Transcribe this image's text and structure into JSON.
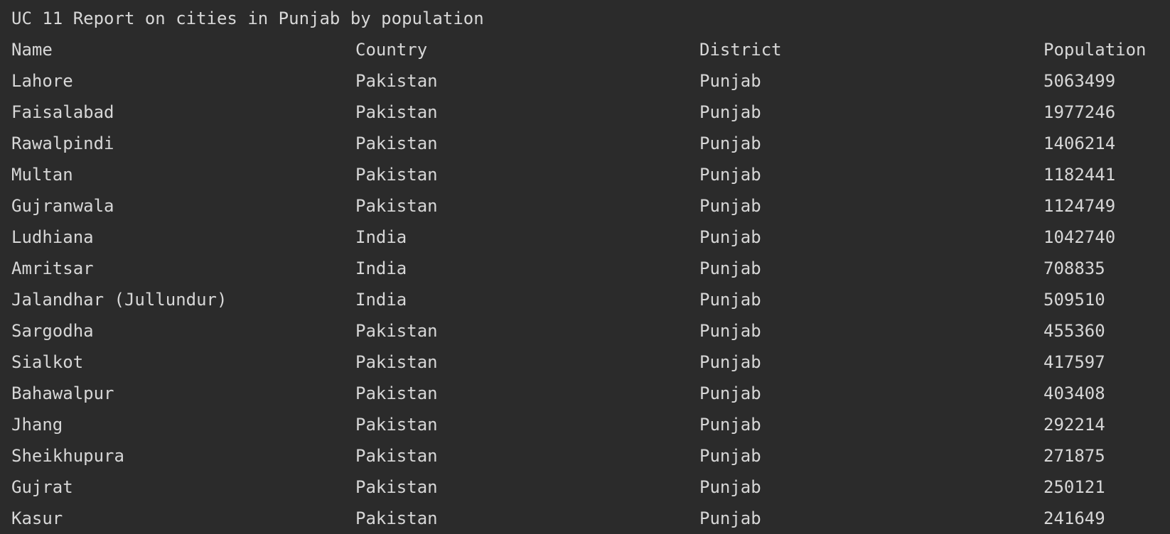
{
  "report": {
    "title": "UC 11 Report on cities in Punjab by population",
    "headers": [
      "Name",
      "Country",
      "District",
      "Population"
    ],
    "rows": [
      [
        "Lahore",
        "Pakistan",
        "Punjab",
        "5063499"
      ],
      [
        "Faisalabad",
        "Pakistan",
        "Punjab",
        "1977246"
      ],
      [
        "Rawalpindi",
        "Pakistan",
        "Punjab",
        "1406214"
      ],
      [
        "Multan",
        "Pakistan",
        "Punjab",
        "1182441"
      ],
      [
        "Gujranwala",
        "Pakistan",
        "Punjab",
        "1124749"
      ],
      [
        "Ludhiana",
        "India",
        "Punjab",
        "1042740"
      ],
      [
        "Amritsar",
        "India",
        "Punjab",
        "708835"
      ],
      [
        "Jalandhar (Jullundur)",
        "India",
        "Punjab",
        "509510"
      ],
      [
        "Sargodha",
        "Pakistan",
        "Punjab",
        "455360"
      ],
      [
        "Sialkot",
        "Pakistan",
        "Punjab",
        "417597"
      ],
      [
        "Bahawalpur",
        "Pakistan",
        "Punjab",
        "403408"
      ],
      [
        "Jhang",
        "Pakistan",
        "Punjab",
        "292214"
      ],
      [
        "Sheikhupura",
        "Pakistan",
        "Punjab",
        "271875"
      ],
      [
        "Gujrat",
        "Pakistan",
        "Punjab",
        "250121"
      ],
      [
        "Kasur",
        "Pakistan",
        "Punjab",
        "241649"
      ]
    ]
  },
  "colors": {
    "background": "#2b2b2b",
    "text": "#d7d7d7"
  }
}
